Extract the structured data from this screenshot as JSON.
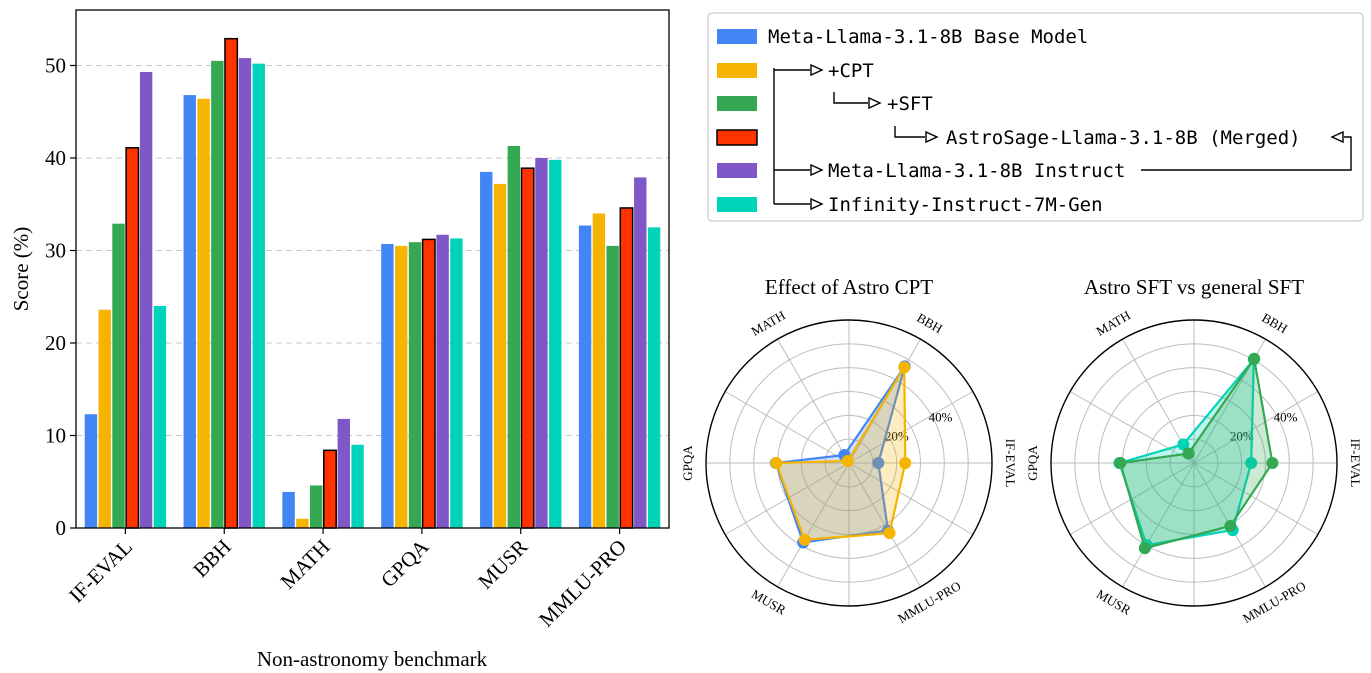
{
  "chart_data": [
    {
      "type": "bar",
      "xlabel": "Non-astronomy benchmark",
      "ylabel": "Score (%)",
      "ylim": [
        0,
        56
      ],
      "yticks": [
        0,
        10,
        20,
        30,
        40,
        50
      ],
      "grid": "horizontal dashed",
      "categories": [
        "IF-EVAL",
        "BBH",
        "MATH",
        "GPQA",
        "MUSR",
        "MMLU-PRO"
      ],
      "series": [
        {
          "name": "Meta-Llama-3.1-8B Base Model",
          "color": "#4285f4",
          "values": [
            12.3,
            46.8,
            3.9,
            30.7,
            38.5,
            32.7
          ]
        },
        {
          "name": "+CPT",
          "color": "#f4b400",
          "values": [
            23.6,
            46.4,
            1.0,
            30.5,
            37.2,
            34.0
          ]
        },
        {
          "name": "+SFT",
          "color": "#34a853",
          "values": [
            32.9,
            50.5,
            4.6,
            30.9,
            41.3,
            30.5
          ]
        },
        {
          "name": "AstroSage-Llama-3.1-8B (Merged)",
          "color": "#ff3300",
          "values": [
            41.1,
            52.9,
            8.4,
            31.2,
            38.9,
            34.6
          ]
        },
        {
          "name": "Meta-Llama-3.1-8B Instruct",
          "color": "#8057c7",
          "values": [
            49.3,
            50.8,
            11.8,
            31.7,
            40.0,
            37.9
          ]
        },
        {
          "name": "Infinity-Instruct-7M-Gen",
          "color": "#00d4b8",
          "values": [
            24.0,
            50.2,
            9.0,
            31.3,
            39.8,
            32.5
          ]
        }
      ]
    },
    {
      "type": "radar",
      "title": "Effect of Astro CPT",
      "axes": [
        "IF-EVAL",
        "BBH",
        "MATH",
        "GPQA",
        "MUSR",
        "MMLU-PRO"
      ],
      "rticks": [
        "20%",
        "40%"
      ],
      "series": [
        {
          "name": "Meta-Llama-3.1-8B Base Model",
          "color": "#4285f4",
          "values": [
            12.3,
            46.8,
            3.9,
            30.7,
            38.5,
            32.7
          ]
        },
        {
          "name": "+CPT",
          "color": "#f4b400",
          "values": [
            23.6,
            46.4,
            1.0,
            30.5,
            37.2,
            34.0
          ]
        }
      ]
    },
    {
      "type": "radar",
      "title": "Astro SFT vs general SFT",
      "axes": [
        "IF-EVAL",
        "BBH",
        "MATH",
        "GPQA",
        "MUSR",
        "MMLU-PRO"
      ],
      "rticks": [
        "20%",
        "40%"
      ],
      "series": [
        {
          "name": "Infinity-Instruct-7M-Gen",
          "color": "#00d4b8",
          "values": [
            24.0,
            50.2,
            9.0,
            31.3,
            39.8,
            32.5
          ]
        },
        {
          "name": "+SFT",
          "color": "#34a853",
          "values": [
            32.9,
            50.5,
            4.6,
            30.9,
            41.3,
            30.5
          ]
        }
      ]
    }
  ],
  "legend": {
    "entries": [
      {
        "label": "Meta-Llama-3.1-8B Base Model",
        "color": "#4285f4"
      },
      {
        "label": "+CPT",
        "color": "#f4b400"
      },
      {
        "label": "+SFT",
        "color": "#34a853"
      },
      {
        "label": "AstroSage-Llama-3.1-8B (Merged)",
        "color": "#ff3300"
      },
      {
        "label": "Meta-Llama-3.1-8B Instruct",
        "color": "#8057c7"
      },
      {
        "label": "Infinity-Instruct-7M-Gen",
        "color": "#00d4b8"
      }
    ]
  }
}
